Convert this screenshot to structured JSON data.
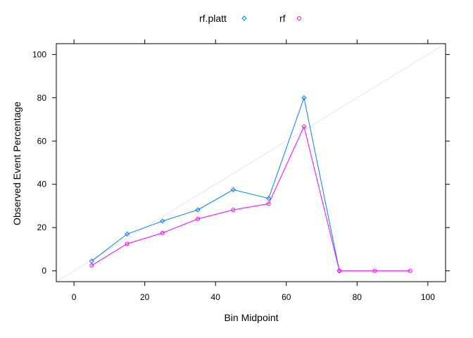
{
  "chart_data": {
    "type": "line",
    "xlabel": "Bin Midpoint",
    "ylabel": "Observed Event Percentage",
    "xlim": [
      -5,
      105
    ],
    "ylim": [
      -5,
      105
    ],
    "x_ticks": [
      0,
      20,
      40,
      60,
      80,
      100
    ],
    "y_ticks": [
      0,
      20,
      40,
      60,
      80,
      100
    ],
    "x_tick_labels": [
      "0",
      "20",
      "40",
      "60",
      "80",
      "100"
    ],
    "y_tick_labels": [
      "0",
      "20",
      "40",
      "60",
      "80",
      "100"
    ],
    "grid": false,
    "reference_line": "diagonal y = x",
    "legend_position": "top",
    "series": [
      {
        "name": "rf.platt",
        "color": "#0080ff",
        "marker": "diamond",
        "x": [
          5,
          15,
          25,
          35,
          45,
          55,
          65,
          75
        ],
        "values": [
          4.5,
          17,
          23,
          28.2,
          37.5,
          33.5,
          80,
          0
        ]
      },
      {
        "name": "rf",
        "color": "#ff00ff",
        "marker": "circle",
        "x": [
          5,
          15,
          25,
          35,
          45,
          55,
          65,
          75,
          85,
          95
        ],
        "values": [
          2.5,
          12.5,
          17.5,
          24,
          28.2,
          31,
          66.7,
          0,
          0,
          0
        ]
      }
    ]
  }
}
